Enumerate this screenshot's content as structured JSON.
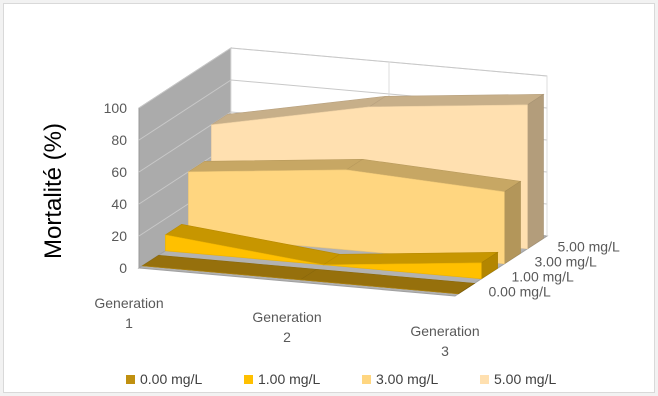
{
  "chart_data": {
    "type": "area",
    "view": "3d-ribbons",
    "title": "",
    "ylabel": "Mortalité (%)",
    "xlabel": "",
    "ylim": [
      0,
      100
    ],
    "yticks": [
      "0",
      "20",
      "40",
      "60",
      "80",
      "100"
    ],
    "categories": [
      [
        "Generation",
        "1"
      ],
      [
        "Generation",
        "2"
      ],
      [
        "Generation",
        "3"
      ]
    ],
    "series": [
      {
        "name": "0.00 mg/L",
        "values": [
          0,
          0,
          0
        ],
        "color": "#c09010"
      },
      {
        "name": "1.00 mg/L",
        "values": [
          10,
          0,
          10
        ],
        "color": "#ffc000"
      },
      {
        "name": "3.00 mg/L",
        "values": [
          40,
          50,
          45
        ],
        "color": "#ffd680"
      },
      {
        "name": "5.00 mg/L",
        "values": [
          60,
          80,
          90
        ],
        "color": "#ffe0b0"
      }
    ],
    "grid": true,
    "legend": "bottom"
  }
}
